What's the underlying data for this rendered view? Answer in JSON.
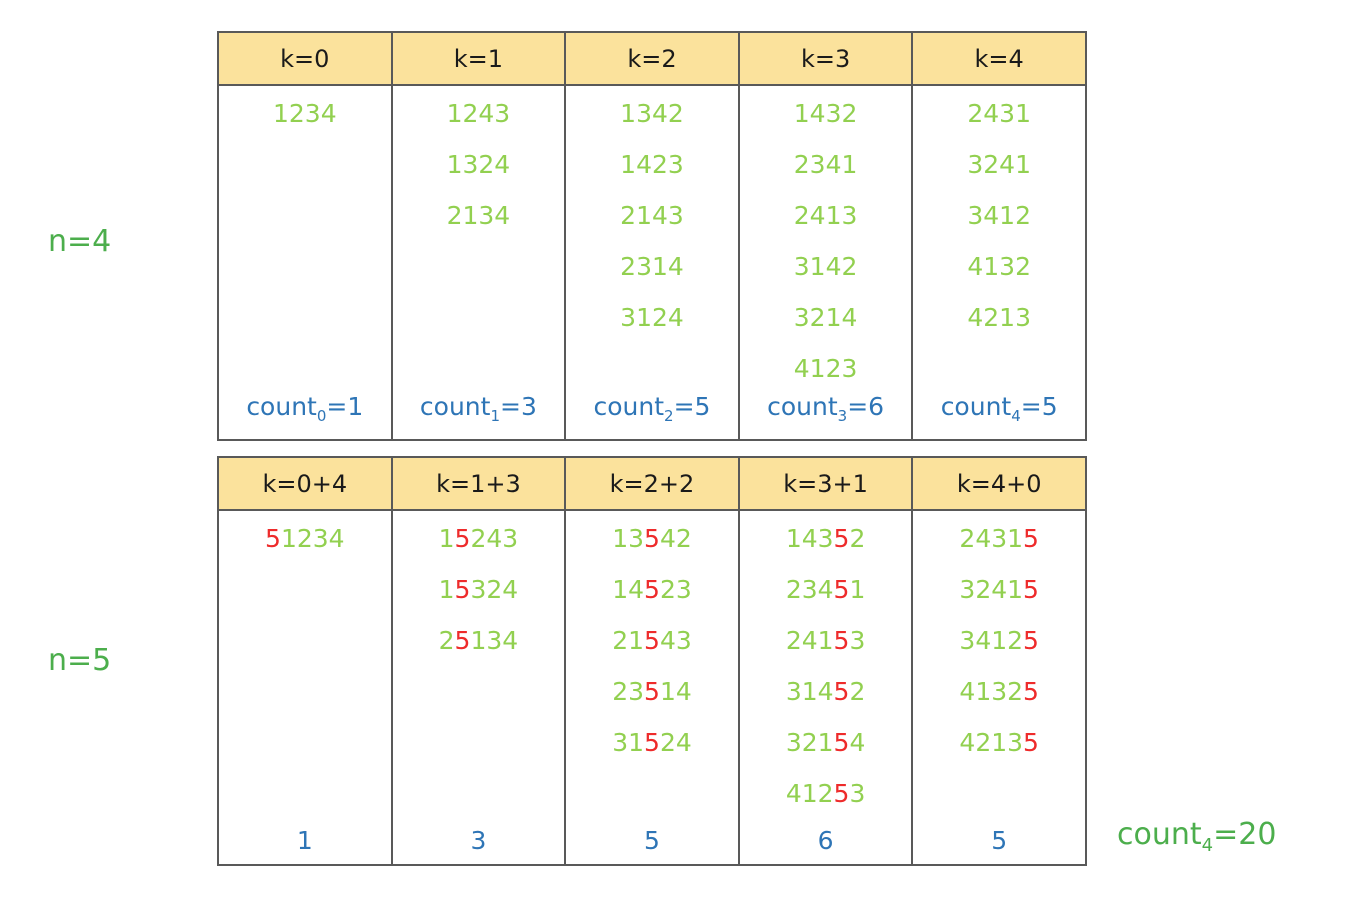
{
  "top": {
    "n_label": "n=4",
    "headers": [
      "k=0",
      "k=1",
      "k=2",
      "k=3",
      "k=4"
    ],
    "columns": [
      [
        "1234"
      ],
      [
        "1243",
        "1324",
        "2134"
      ],
      [
        "1342",
        "1423",
        "2143",
        "2314",
        "3124"
      ],
      [
        "1432",
        "2341",
        "2413",
        "3142",
        "3214",
        "4123"
      ],
      [
        "2431",
        "3241",
        "3412",
        "4132",
        "4213"
      ]
    ],
    "counts": [
      {
        "base": "count",
        "sub": "0",
        "eq": "=1"
      },
      {
        "base": "count",
        "sub": "1",
        "eq": "=3"
      },
      {
        "base": "count",
        "sub": "2",
        "eq": "=5"
      },
      {
        "base": "count",
        "sub": "3",
        "eq": "=6"
      },
      {
        "base": "count",
        "sub": "4",
        "eq": "=5"
      }
    ]
  },
  "bottom": {
    "n_label": "n=5",
    "headers": [
      "k=0+4",
      "k=1+3",
      "k=2+2",
      "k=3+1",
      "k=4+0"
    ],
    "highlight_position": [
      0,
      1,
      2,
      3,
      4
    ],
    "columns": [
      [
        "51234"
      ],
      [
        "15243",
        "15324",
        "25134"
      ],
      [
        "13542",
        "14523",
        "21543",
        "23514",
        "31524"
      ],
      [
        "14352",
        "23451",
        "24153",
        "31452",
        "32154",
        "41253"
      ],
      [
        "24315",
        "32415",
        "34125",
        "41325",
        "42135"
      ]
    ],
    "counts": [
      "1",
      "3",
      "5",
      "6",
      "5"
    ]
  },
  "total": {
    "base": "count",
    "sub": "4",
    "eq": "=20"
  },
  "colors": {
    "permutation": "#92d050",
    "inserted_digit": "#ee2b2b",
    "count": "#2e75b6",
    "side_label": "#4cae4c",
    "header_fill": "#fbe29c"
  }
}
